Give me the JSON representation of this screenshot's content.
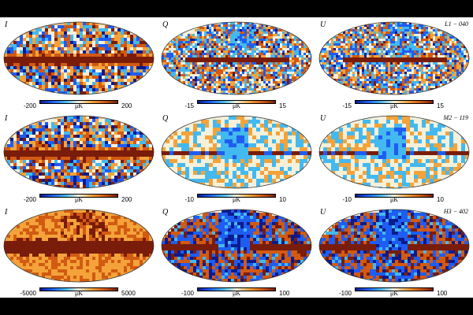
{
  "rows": [
    {
      "frequency_label": "L1 − 040",
      "panels": [
        {
          "stokes": "I",
          "scale_min": "-200",
          "scale_max": "200",
          "unit": "μK",
          "pattern": "intensity-band"
        },
        {
          "stokes": "Q",
          "scale_min": "-15",
          "scale_max": "15",
          "unit": "μK",
          "pattern": "noisy-polarization"
        },
        {
          "stokes": "U",
          "scale_min": "-15",
          "scale_max": "15",
          "unit": "μK",
          "pattern": "noisy-polarization"
        }
      ]
    },
    {
      "frequency_label": "M2 − 119",
      "panels": [
        {
          "stokes": "I",
          "scale_min": "-200",
          "scale_max": "200",
          "unit": "μK",
          "pattern": "intensity-band"
        },
        {
          "stokes": "Q",
          "scale_min": "-10",
          "scale_max": "10",
          "unit": "μK",
          "pattern": "smooth-polarization"
        },
        {
          "stokes": "U",
          "scale_min": "-10",
          "scale_max": "10",
          "unit": "μK",
          "pattern": "smooth-polarization"
        }
      ]
    },
    {
      "frequency_label": "H3 − 402",
      "panels": [
        {
          "stokes": "I",
          "scale_min": "-5000",
          "scale_max": "5000",
          "unit": "μK",
          "pattern": "dust-intensity"
        },
        {
          "stokes": "Q",
          "scale_min": "-100",
          "scale_max": "100",
          "unit": "μK",
          "pattern": "dust-polarization"
        },
        {
          "stokes": "U",
          "scale_min": "-100",
          "scale_max": "100",
          "unit": "μK",
          "pattern": "dust-polarization"
        }
      ]
    }
  ],
  "colormap": [
    "#0b1b8f",
    "#1f5df2",
    "#43b9ef",
    "#f4f0da",
    "#f3a33a",
    "#d25a12",
    "#7a1c0a"
  ],
  "background_color": "#000000",
  "figure_color": "#ffffff"
}
